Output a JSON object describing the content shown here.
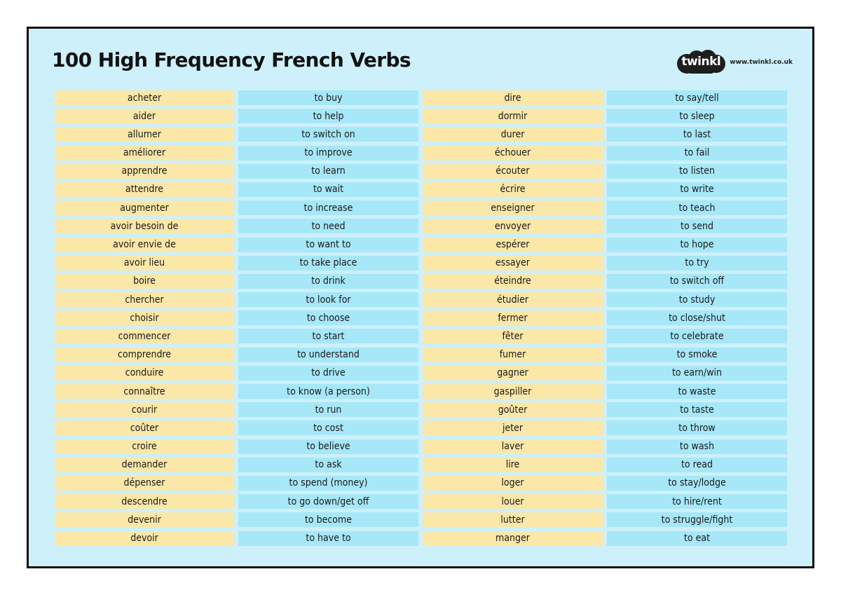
{
  "title": "100 High Frequency French Verbs",
  "brand": {
    "logo_text": "twinkl",
    "website": "www.twinkl.co.uk"
  },
  "colors": {
    "background": "#cdf0fb",
    "french_cell": "#fbe7a8",
    "english_cell": "#a6e7f8",
    "logo": "#1e1e1e"
  },
  "columns": [
    {
      "lang": "french",
      "items": [
        "acheter",
        "aider",
        "allumer",
        "améliorer",
        "apprendre",
        "attendre",
        "augmenter",
        "avoir besoin de",
        "avoir envie de",
        "avoir lieu",
        "boire",
        "chercher",
        "choisir",
        "commencer",
        "comprendre",
        "conduire",
        "connaître",
        "courir",
        "coûter",
        "croire",
        "demander",
        "dépenser",
        "descendre",
        "devenir",
        "devoir"
      ]
    },
    {
      "lang": "english",
      "items": [
        "to buy",
        "to help",
        "to switch on",
        "to improve",
        "to learn",
        "to wait",
        "to increase",
        "to need",
        "to want to",
        "to take place",
        "to drink",
        "to look for",
        "to choose",
        "to start",
        "to understand",
        "to drive",
        "to know (a person)",
        "to run",
        "to cost",
        "to believe",
        "to ask",
        "to spend (money)",
        "to go down/get off",
        "to become",
        "to have to"
      ]
    },
    {
      "lang": "french",
      "items": [
        "dire",
        "dormir",
        "durer",
        "échouer",
        "écouter",
        "écrire",
        "enseigner",
        "envoyer",
        "espérer",
        "essayer",
        "éteindre",
        "étudier",
        "fermer",
        "fêter",
        "fumer",
        "gagner",
        "gaspiller",
        "goûter",
        "jeter",
        "laver",
        "lire",
        "loger",
        "louer",
        "lutter",
        "manger"
      ]
    },
    {
      "lang": "english",
      "items": [
        "to say/tell",
        "to sleep",
        "to last",
        "to fail",
        "to listen",
        "to write",
        "to teach",
        "to send",
        "to hope",
        "to try",
        "to switch off",
        "to study",
        "to close/shut",
        "to celebrate",
        "to smoke",
        "to earn/win",
        "to waste",
        "to taste",
        "to throw",
        "to wash",
        "to read",
        "to stay/lodge",
        "to hire/rent",
        "to struggle/fight",
        "to eat"
      ]
    }
  ]
}
